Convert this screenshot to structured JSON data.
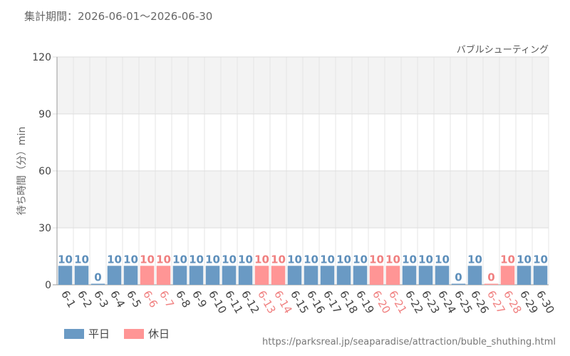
{
  "header": {
    "period": "集計期間：2026-06-01～2026-06-30"
  },
  "footer": {
    "url": "https://parksreal.jp/seaparadise/attraction/buble_shuthing.html"
  },
  "colors": {
    "weekday": "#6a9ac4",
    "holiday": "#ff9595",
    "weekday_text": "#5e8fbb",
    "holiday_text": "#f08080",
    "band": "#f3f3f3"
  },
  "legend": [
    {
      "label": "平日",
      "kind": "weekday"
    },
    {
      "label": "休日",
      "kind": "holiday"
    }
  ],
  "chart_data": {
    "type": "bar",
    "title": "バブルシューティング",
    "ylabel": "待ち時間（分）min",
    "ylim": [
      0,
      120
    ],
    "yticks": [
      0,
      30,
      60,
      90,
      120
    ],
    "grid": true,
    "legend_placement": "bottom-left",
    "categories": [
      "6-1",
      "6-2",
      "6-3",
      "6-4",
      "6-5",
      "6-6",
      "6-7",
      "6-8",
      "6-9",
      "6-10",
      "6-11",
      "6-12",
      "6-13",
      "6-14",
      "6-15",
      "6-16",
      "6-17",
      "6-18",
      "6-19",
      "6-20",
      "6-21",
      "6-22",
      "6-23",
      "6-24",
      "6-25",
      "6-26",
      "6-27",
      "6-28",
      "6-29",
      "6-30"
    ],
    "values": [
      10,
      10,
      0,
      10,
      10,
      10,
      10,
      10,
      10,
      10,
      10,
      10,
      10,
      10,
      10,
      10,
      10,
      10,
      10,
      10,
      10,
      10,
      10,
      10,
      0,
      10,
      0,
      10,
      10,
      10
    ],
    "day_type": [
      "weekday",
      "weekday",
      "weekday",
      "weekday",
      "weekday",
      "holiday",
      "holiday",
      "weekday",
      "weekday",
      "weekday",
      "weekday",
      "weekday",
      "holiday",
      "holiday",
      "weekday",
      "weekday",
      "weekday",
      "weekday",
      "weekday",
      "holiday",
      "holiday",
      "weekday",
      "weekday",
      "weekday",
      "weekday",
      "weekday",
      "holiday",
      "holiday",
      "weekday",
      "weekday"
    ]
  }
}
